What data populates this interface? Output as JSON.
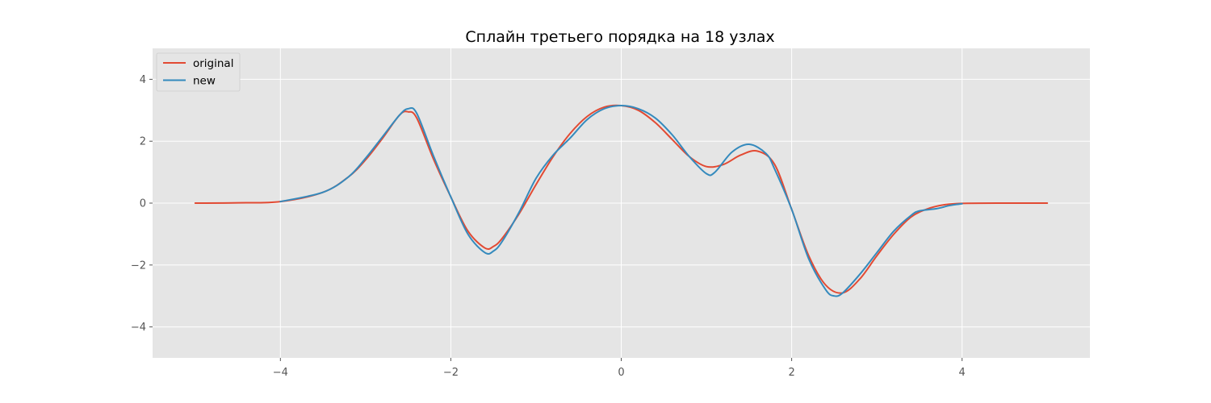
{
  "chart_data": {
    "type": "line",
    "title": "Сплайн третьего порядка на 18 узлах",
    "xlabel": "",
    "ylabel": "",
    "xlim": [
      -5.5,
      5.5
    ],
    "ylim": [
      -5,
      5
    ],
    "xticks": [
      -4,
      -2,
      0,
      2,
      4
    ],
    "yticks": [
      -4,
      -2,
      0,
      2,
      4
    ],
    "xtick_labels": [
      "−4",
      "−2",
      "0",
      "2",
      "4"
    ],
    "ytick_labels": [
      "−4",
      "−2",
      "0",
      "2",
      "4"
    ],
    "grid": true,
    "legend_position": "top-left",
    "series": [
      {
        "name": "original",
        "color": "#e24a33",
        "points": [
          [
            -5.0,
            0.0
          ],
          [
            -4.5,
            0.01
          ],
          [
            -4.0,
            0.05
          ],
          [
            -3.5,
            0.35
          ],
          [
            -3.2,
            0.85
          ],
          [
            -3.0,
            1.4
          ],
          [
            -2.8,
            2.1
          ],
          [
            -2.6,
            2.85
          ],
          [
            -2.5,
            2.95
          ],
          [
            -2.4,
            2.75
          ],
          [
            -2.2,
            1.4
          ],
          [
            -2.0,
            0.2
          ],
          [
            -1.8,
            -0.9
          ],
          [
            -1.6,
            -1.45
          ],
          [
            -1.5,
            -1.4
          ],
          [
            -1.4,
            -1.15
          ],
          [
            -1.2,
            -0.35
          ],
          [
            -1.0,
            0.6
          ],
          [
            -0.8,
            1.5
          ],
          [
            -0.6,
            2.25
          ],
          [
            -0.4,
            2.8
          ],
          [
            -0.2,
            3.1
          ],
          [
            0.0,
            3.15
          ],
          [
            0.2,
            3.0
          ],
          [
            0.4,
            2.6
          ],
          [
            0.6,
            2.05
          ],
          [
            0.8,
            1.5
          ],
          [
            1.0,
            1.18
          ],
          [
            1.2,
            1.25
          ],
          [
            1.4,
            1.55
          ],
          [
            1.6,
            1.68
          ],
          [
            1.8,
            1.25
          ],
          [
            2.0,
            -0.2
          ],
          [
            2.2,
            -1.7
          ],
          [
            2.4,
            -2.65
          ],
          [
            2.6,
            -2.9
          ],
          [
            2.8,
            -2.45
          ],
          [
            3.0,
            -1.7
          ],
          [
            3.2,
            -1.0
          ],
          [
            3.4,
            -0.45
          ],
          [
            3.6,
            -0.18
          ],
          [
            3.8,
            -0.05
          ],
          [
            4.0,
            -0.01
          ],
          [
            4.5,
            0.0
          ],
          [
            5.0,
            0.0
          ]
        ]
      },
      {
        "name": "new",
        "color": "#348abd",
        "points": [
          [
            -4.0,
            0.05
          ],
          [
            -3.5,
            0.35
          ],
          [
            -3.2,
            0.85
          ],
          [
            -3.0,
            1.45
          ],
          [
            -2.8,
            2.15
          ],
          [
            -2.6,
            2.85
          ],
          [
            -2.5,
            3.05
          ],
          [
            -2.4,
            2.9
          ],
          [
            -2.2,
            1.5
          ],
          [
            -2.0,
            0.2
          ],
          [
            -1.8,
            -1.0
          ],
          [
            -1.6,
            -1.6
          ],
          [
            -1.5,
            -1.55
          ],
          [
            -1.4,
            -1.25
          ],
          [
            -1.2,
            -0.3
          ],
          [
            -1.0,
            0.8
          ],
          [
            -0.8,
            1.55
          ],
          [
            -0.6,
            2.1
          ],
          [
            -0.4,
            2.7
          ],
          [
            -0.2,
            3.05
          ],
          [
            0.0,
            3.15
          ],
          [
            0.2,
            3.05
          ],
          [
            0.4,
            2.75
          ],
          [
            0.6,
            2.2
          ],
          [
            0.8,
            1.5
          ],
          [
            1.0,
            0.95
          ],
          [
            1.1,
            1.0
          ],
          [
            1.3,
            1.65
          ],
          [
            1.5,
            1.9
          ],
          [
            1.7,
            1.6
          ],
          [
            1.8,
            1.1
          ],
          [
            2.0,
            -0.2
          ],
          [
            2.2,
            -1.8
          ],
          [
            2.4,
            -2.8
          ],
          [
            2.5,
            -3.0
          ],
          [
            2.6,
            -2.9
          ],
          [
            2.8,
            -2.3
          ],
          [
            3.0,
            -1.6
          ],
          [
            3.2,
            -0.9
          ],
          [
            3.4,
            -0.4
          ],
          [
            3.5,
            -0.25
          ],
          [
            3.7,
            -0.18
          ],
          [
            3.85,
            -0.08
          ],
          [
            4.0,
            -0.02
          ]
        ]
      }
    ]
  }
}
